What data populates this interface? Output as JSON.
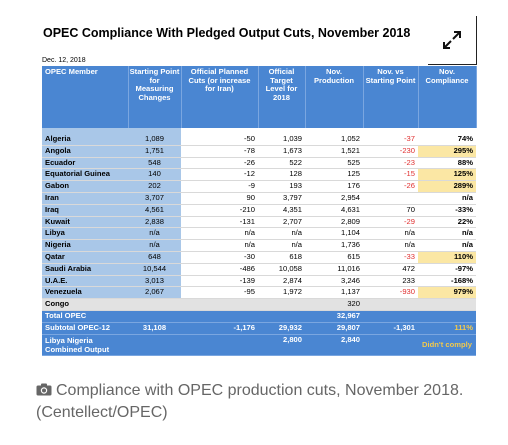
{
  "figure": {
    "title": "OPEC Compliance With Pledged Output Cuts, November 2018",
    "date": "Dec. 12, 2018",
    "expand_icon": "expand-icon"
  },
  "table": {
    "headers": [
      "OPEC Member",
      "Starting Point for Measuring Changes",
      "Official Planned Cuts (or increase for Iran)",
      "Official Target Level for 2018",
      "Nov. Production",
      "Nov. vs Starting Point",
      "Nov. Compliance"
    ],
    "rows": [
      {
        "member": "Algeria",
        "start": "1,089",
        "cuts": "-50",
        "target": "1,039",
        "prod": "1,052",
        "vs": "-37",
        "comp": "74%",
        "vs_neg": true,
        "highlight": false
      },
      {
        "member": "Angola",
        "start": "1,751",
        "cuts": "-78",
        "target": "1,673",
        "prod": "1,521",
        "vs": "-230",
        "comp": "295%",
        "vs_neg": true,
        "highlight": true
      },
      {
        "member": "Ecuador",
        "start": "548",
        "cuts": "-26",
        "target": "522",
        "prod": "525",
        "vs": "-23",
        "comp": "88%",
        "vs_neg": true,
        "highlight": false
      },
      {
        "member": "Equatorial Guinea",
        "start": "140",
        "cuts": "-12",
        "target": "128",
        "prod": "125",
        "vs": "-15",
        "comp": "125%",
        "vs_neg": true,
        "highlight": true
      },
      {
        "member": "Gabon",
        "start": "202",
        "cuts": "-9",
        "target": "193",
        "prod": "176",
        "vs": "-26",
        "comp": "289%",
        "vs_neg": true,
        "highlight": true
      },
      {
        "member": "Iran",
        "start": "3,707",
        "cuts": "90",
        "target": "3,797",
        "prod": "2,954",
        "vs": "",
        "comp": "n/a",
        "vs_neg": false,
        "highlight": false
      },
      {
        "member": "Iraq",
        "start": "4,561",
        "cuts": "-210",
        "target": "4,351",
        "prod": "4,631",
        "vs": "70",
        "comp": "-33%",
        "vs_neg": false,
        "highlight": false
      },
      {
        "member": "Kuwait",
        "start": "2,838",
        "cuts": "-131",
        "target": "2,707",
        "prod": "2,809",
        "vs": "-29",
        "comp": "22%",
        "vs_neg": true,
        "highlight": false
      },
      {
        "member": "Libya",
        "start": "n/a",
        "cuts": "n/a",
        "target": "n/a",
        "prod": "1,104",
        "vs": "n/a",
        "comp": "n/a",
        "vs_neg": false,
        "highlight": false
      },
      {
        "member": "Nigeria",
        "start": "n/a",
        "cuts": "n/a",
        "target": "n/a",
        "prod": "1,736",
        "vs": "n/a",
        "comp": "n/a",
        "vs_neg": false,
        "highlight": false
      },
      {
        "member": "Qatar",
        "start": "648",
        "cuts": "-30",
        "target": "618",
        "prod": "615",
        "vs": "-33",
        "comp": "110%",
        "vs_neg": true,
        "highlight": true
      },
      {
        "member": "Saudi Arabia",
        "start": "10,544",
        "cuts": "-486",
        "target": "10,058",
        "prod": "11,016",
        "vs": "472",
        "comp": "-97%",
        "vs_neg": false,
        "highlight": false
      },
      {
        "member": "U.A.E.",
        "start": "3,013",
        "cuts": "-139",
        "target": "2,874",
        "prod": "3,246",
        "vs": "233",
        "comp": "-168%",
        "vs_neg": false,
        "highlight": false
      },
      {
        "member": "Venezuela",
        "start": "2,067",
        "cuts": "-95",
        "target": "1,972",
        "prod": "1,137",
        "vs": "-930",
        "comp": "979%",
        "vs_neg": true,
        "highlight": true
      }
    ],
    "congo": {
      "member": "Congo",
      "prod": "320"
    },
    "total": {
      "member": "Total OPEC",
      "prod": "32,967"
    },
    "subtotal": {
      "member": "Subtotal OPEC-12",
      "start": "31,108",
      "cuts": "-1,176",
      "target": "29,932",
      "prod": "29,807",
      "vs": "-1,301",
      "comp": "111%"
    },
    "libya_nigeria": {
      "member": "Libya Nigeria Combined Output",
      "target": "2,800",
      "prod": "2,840",
      "comp": "Didn't comply"
    }
  },
  "caption": {
    "icon": "camera-icon",
    "text": "Compliance with OPEC production cuts, November 2018. (Centellect/OPEC)"
  }
}
